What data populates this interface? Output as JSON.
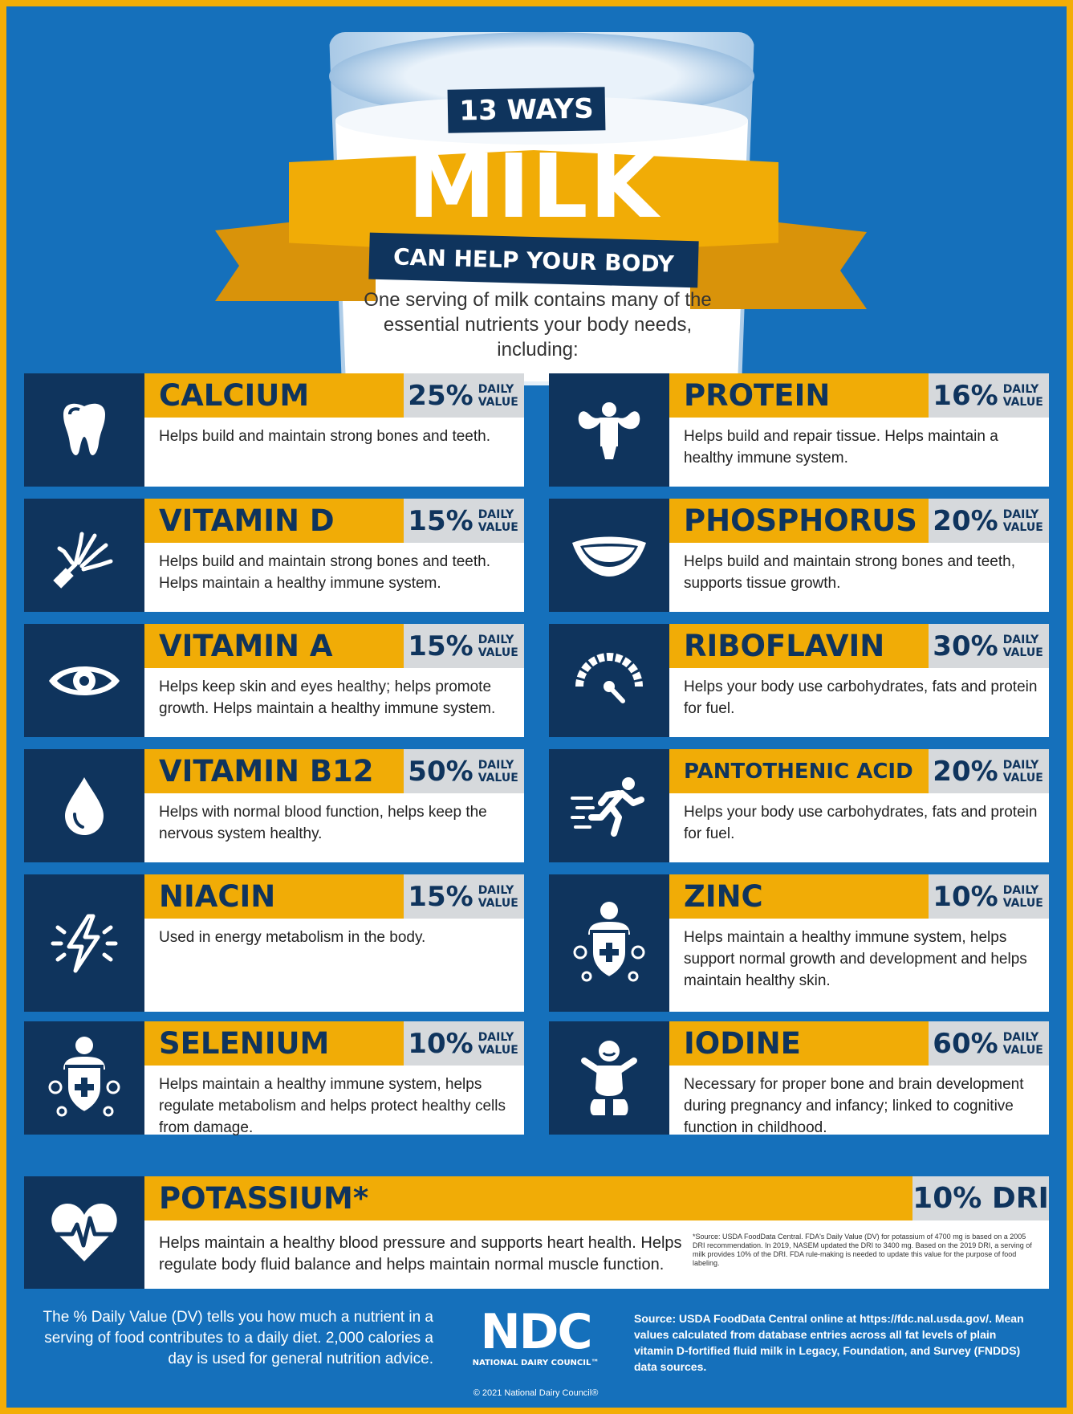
{
  "header": {
    "ways": "13 WAYS",
    "milk": "MILK",
    "subtitle": "CAN HELP YOUR BODY",
    "intro": "One serving of milk contains many of the essential nutrients your body needs, including:"
  },
  "dv_label_line1": "DAILY",
  "dv_label_line2": "VALUE",
  "nutrients": [
    {
      "name": "CALCIUM",
      "pct": "25%",
      "desc": "Helps build and maintain strong bones and teeth.",
      "icon": "tooth-icon"
    },
    {
      "name": "PROTEIN",
      "pct": "16%",
      "desc": "Helps build and repair tissue. Helps maintain a healthy immune system.",
      "icon": "muscle-icon"
    },
    {
      "name": "VITAMIN D",
      "pct": "15%",
      "desc": "Helps build and maintain strong bones and teeth. Helps maintain a healthy immune system.",
      "icon": "hand-bones-icon"
    },
    {
      "name": "PHOSPHORUS",
      "pct": "20%",
      "desc": "Helps build and maintain strong bones and teeth, supports tissue growth.",
      "icon": "smile-icon"
    },
    {
      "name": "VITAMIN A",
      "pct": "15%",
      "desc": "Helps keep skin and eyes healthy; helps promote growth. Helps maintain a healthy immune system.",
      "icon": "eye-icon"
    },
    {
      "name": "RIBOFLAVIN",
      "pct": "30%",
      "desc": "Helps your body use carbohydrates, fats and protein for fuel.",
      "icon": "gauge-icon"
    },
    {
      "name": "VITAMIN B12",
      "pct": "50%",
      "desc": "Helps with normal blood function, helps keep the nervous system healthy.",
      "icon": "blood-drop-icon"
    },
    {
      "name": "PANTOTHENIC ACID",
      "pct": "20%",
      "desc": "Helps your body use carbohydrates, fats and protein for fuel.",
      "icon": "runner-icon"
    },
    {
      "name": "NIACIN",
      "pct": "15%",
      "desc": "Used in energy metabolism in the body.",
      "icon": "lightning-icon"
    },
    {
      "name": "ZINC",
      "pct": "10%",
      "desc": "Helps maintain a healthy immune system, helps support normal growth and development and helps maintain healthy skin.",
      "icon": "immune-shield-icon"
    },
    {
      "name": "SELENIUM",
      "pct": "10%",
      "desc": "Helps maintain a healthy immune system, helps regulate metabolism and helps protect healthy cells from damage.",
      "icon": "immune-shield-icon"
    },
    {
      "name": "IODINE",
      "pct": "60%",
      "desc": "Necessary for proper bone and brain development during pregnancy and infancy; linked to cognitive function in childhood.",
      "icon": "baby-icon"
    }
  ],
  "potassium": {
    "name": "POTASSIUM*",
    "value": "10% DRI",
    "desc": "Helps maintain a healthy blood pressure and supports heart health. Helps regulate body fluid balance and helps maintain normal muscle function.",
    "footnote": "*Source: USDA FoodData Central. FDA's Daily Value (DV) for potassium of 4700 mg is based on a 2005 DRI recommendation. In 2019, NASEM updated the DRI to 3400 mg. Based on the 2019 DRI, a serving of milk provides 10% of the DRI. FDA rule-making is needed to update this value for the purpose of food labeling.",
    "icon": "heart-pulse-icon"
  },
  "footer": {
    "dv_note": "The % Daily Value (DV) tells you how much a nutrient in a serving of food contributes to a daily diet. 2,000 calories a day is used for general nutrition advice.",
    "logo_text": "NDC",
    "logo_sub": "NATIONAL DAIRY COUNCIL™",
    "copyright": "© 2021 National Dairy Council®",
    "source": "Source: USDA FoodData Central online at https://fdc.nal.usda.gov/. Mean values calculated from database entries across all fat levels of plain vitamin D-fortified fluid milk in Legacy, Foundation, and Survey (FNDDS) data sources."
  },
  "colors": {
    "navy": "#0f345d",
    "gold": "#f1ac06",
    "blue": "#1570bb",
    "gray": "#d6d9dc"
  }
}
